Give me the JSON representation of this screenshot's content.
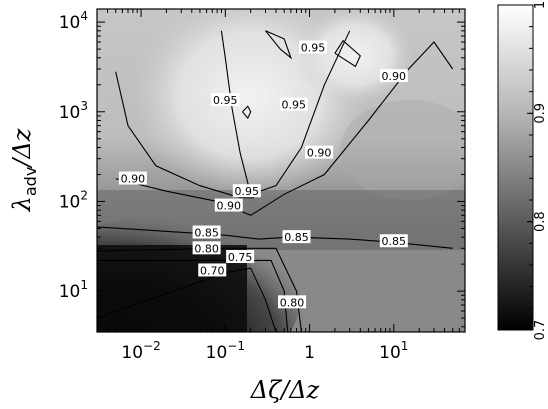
{
  "chart_data": {
    "type": "heatmap",
    "title": "",
    "xlabel": "Δζ/Δz",
    "ylabel": "λadv/Δz",
    "x_scale": "log",
    "y_scale": "log",
    "xlim": [
      0.003,
      70
    ],
    "ylim": [
      3.5,
      14000
    ],
    "x_ticks": [
      {
        "value": 0.01,
        "label": "10",
        "sup": "−2"
      },
      {
        "value": 0.1,
        "label": "10",
        "sup": "−1"
      },
      {
        "value": 1,
        "label": "1",
        "sup": ""
      },
      {
        "value": 10,
        "label": "10",
        "sup": "1"
      }
    ],
    "y_ticks": [
      {
        "value": 10,
        "label": "10",
        "sup": "1"
      },
      {
        "value": 100,
        "label": "10",
        "sup": "2"
      },
      {
        "value": 1000,
        "label": "10",
        "sup": "3"
      },
      {
        "value": 10000,
        "label": "10",
        "sup": "4"
      }
    ],
    "colorbar": {
      "min": 0.7,
      "max": 1.0,
      "ticks": [
        {
          "value": 0.7,
          "label": "0.7"
        },
        {
          "value": 0.8,
          "label": "0.8"
        },
        {
          "value": 0.9,
          "label": "0.9"
        },
        {
          "value": 1.0,
          "label": "1"
        }
      ]
    },
    "contours": [
      {
        "level": "0.70",
        "points": [
          [
            0.003,
            5
          ],
          [
            0.1,
            16
          ],
          [
            0.2,
            18
          ],
          [
            0.3,
            8
          ],
          [
            0.4,
            3.5
          ]
        ]
      },
      {
        "level": "0.75",
        "points": [
          [
            0.003,
            22
          ],
          [
            0.1,
            22
          ],
          [
            0.35,
            22
          ],
          [
            0.5,
            10
          ],
          [
            0.55,
            3.5
          ]
        ]
      },
      {
        "level": "0.80",
        "points": [
          [
            0.003,
            28
          ],
          [
            0.1,
            30
          ],
          [
            0.4,
            30
          ],
          [
            0.7,
            10
          ],
          [
            0.8,
            3.5
          ]
        ]
      },
      {
        "level": "0.85",
        "points": [
          [
            0.003,
            52
          ],
          [
            0.1,
            42
          ],
          [
            0.25,
            38
          ],
          [
            0.6,
            40
          ],
          [
            3,
            38
          ],
          [
            10,
            35
          ],
          [
            50,
            30
          ]
        ]
      },
      {
        "level": "0.90",
        "points": [
          [
            0.005,
            180
          ],
          [
            0.02,
            130
          ],
          [
            0.08,
            100
          ],
          [
            0.2,
            70
          ],
          [
            0.5,
            120
          ],
          [
            1.5,
            200
          ],
          [
            5,
            800
          ],
          [
            15,
            3000
          ],
          [
            30,
            6000
          ],
          [
            50,
            3000
          ]
        ]
      },
      {
        "level": "0.90",
        "points": [
          [
            0.005,
            2800
          ],
          [
            0.007,
            700
          ],
          [
            0.015,
            250
          ],
          [
            0.05,
            150
          ],
          [
            0.15,
            110
          ],
          [
            0.22,
            110
          ]
        ]
      },
      {
        "level": "0.95",
        "points": [
          [
            0.09,
            8000
          ],
          [
            0.1,
            4000
          ],
          [
            0.12,
            1100
          ],
          [
            0.15,
            350
          ],
          [
            0.2,
            120
          ],
          [
            0.4,
            150
          ],
          [
            0.8,
            400
          ],
          [
            1.5,
            2000
          ],
          [
            3,
            8000
          ]
        ]
      },
      {
        "level": "0.95",
        "points": [
          [
            0.3,
            8000
          ],
          [
            0.45,
            5000
          ],
          [
            0.6,
            4000
          ],
          [
            0.5,
            6500
          ],
          [
            0.3,
            8000
          ]
        ]
      },
      {
        "level": "0.95",
        "points": [
          [
            2,
            4500
          ],
          [
            2.5,
            6200
          ],
          [
            4,
            4200
          ],
          [
            3.5,
            3200
          ],
          [
            2,
            4500
          ]
        ]
      },
      {
        "level": "0.95",
        "points": [
          [
            0.16,
            1000
          ],
          [
            0.185,
            1150
          ],
          [
            0.2,
            1000
          ],
          [
            0.185,
            850
          ],
          [
            0.16,
            1000
          ]
        ]
      }
    ],
    "contour_labels": [
      {
        "text": "0.70",
        "x": 0.07,
        "y": 17
      },
      {
        "text": "0.75",
        "x": 0.15,
        "y": 24
      },
      {
        "text": "0.80",
        "x": 0.06,
        "y": 30
      },
      {
        "text": "0.85",
        "x": 0.06,
        "y": 45
      },
      {
        "text": "0.85",
        "x": 0.7,
        "y": 40
      },
      {
        "text": "0.85",
        "x": 10,
        "y": 36
      },
      {
        "text": "0.80",
        "x": 0.62,
        "y": 7.5
      },
      {
        "text": "0.90",
        "x": 0.008,
        "y": 180
      },
      {
        "text": "0.90",
        "x": 0.11,
        "y": 90
      },
      {
        "text": "0.90",
        "x": 1.3,
        "y": 350
      },
      {
        "text": "0.90",
        "x": 10,
        "y": 2500
      },
      {
        "text": "0.95",
        "x": 0.18,
        "y": 130
      },
      {
        "text": "0.95",
        "x": 0.65,
        "y": 1200
      },
      {
        "text": "0.95",
        "x": 0.1,
        "y": 1350
      },
      {
        "text": "0.95",
        "x": 1.1,
        "y": 5200
      }
    ]
  }
}
